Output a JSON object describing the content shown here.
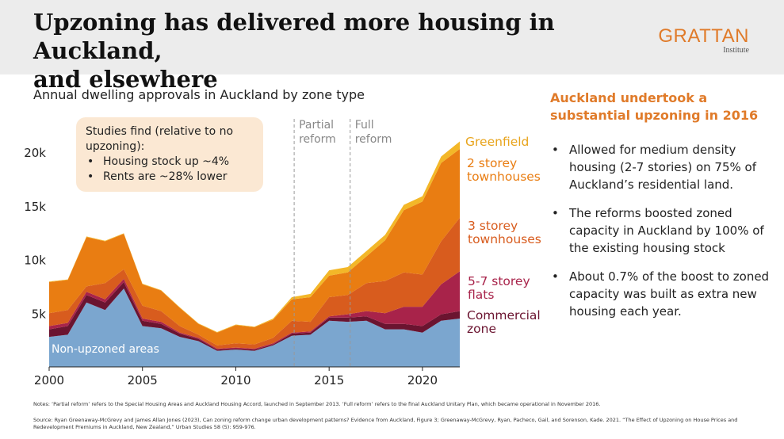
{
  "header": {
    "title_line1": "Upzoning has delivered more housing in Auckland,",
    "title_line2": "and elsewhere",
    "logo_main": "GRATTAN",
    "logo_sub": "Institute"
  },
  "callout": {
    "intro": "Studies find (relative to no upzoning):",
    "items": [
      "Housing stock up ~4%",
      "Rents are ~28% lower"
    ]
  },
  "side_panel": {
    "heading": "Auckland undertook a substantial upzoning in 2016",
    "bullets": [
      "Allowed for medium density housing (2-7 stories) on 75% of Auckland’s residential land.",
      "The reforms boosted zoned capacity in Auckland by 100% of the existing housing stock",
      "About 0.7% of the boost to zoned capacity was built as extra new housing each year."
    ]
  },
  "footer": {
    "notes": "Notes: ‘Partial reform’ refers to the Special Housing Areas and Auckland Housing Accord, launched in September 2013. ‘Full reform’ refers to the final Auckland Unitary Plan, which became operational in November 2016.",
    "source": "Source: Ryan Greenaway-McGrevy and James Allan Jones (2023), Can zoning reform change urban development patterns? Evidence from Auckland, Figure 3; Greenaway-McGrevy, Ryan, Pacheco, Gail, and Sorenson, Kade. 2021. “The Effect of Upzoning on House Prices and Redevelopment Premiums in Auckland, New Zealand,” Urban Studies 58 (5): 959-976."
  },
  "colors": {
    "non_upzoned": "#7ba6cf",
    "commercial": "#6b1430",
    "flats": "#a8234a",
    "three_storey": "#d85c1e",
    "two_storey": "#e97d12",
    "greenfield": "#f3b728",
    "accent": "#e07b2a",
    "reform_line": "#999999"
  },
  "chart_data": {
    "type": "area",
    "stacked": true,
    "title": "Annual dwelling approvals in Auckland by zone type",
    "x": [
      2000,
      2001,
      2002,
      2003,
      2004,
      2005,
      2006,
      2007,
      2008,
      2009,
      2010,
      2011,
      2012,
      2013,
      2014,
      2015,
      2016,
      2017,
      2018,
      2019,
      2020,
      2021,
      2022
    ],
    "series": [
      {
        "name": "Non-upzoned areas",
        "label": "Non-upzoned areas",
        "color_key": "non_upzoned",
        "values": [
          2800,
          3000,
          6000,
          5300,
          7300,
          3800,
          3600,
          2800,
          2400,
          1500,
          1600,
          1500,
          2000,
          2900,
          3000,
          4300,
          4200,
          4300,
          3500,
          3500,
          3200,
          4300,
          4500
        ]
      },
      {
        "name": "Commercial zone",
        "label_lines": [
          "Commercial",
          "zone"
        ],
        "color_key": "commercial",
        "values": [
          700,
          800,
          700,
          700,
          600,
          500,
          400,
          300,
          200,
          100,
          100,
          100,
          100,
          200,
          200,
          300,
          400,
          400,
          500,
          500,
          600,
          600,
          700
        ]
      },
      {
        "name": "5-7 storey flats",
        "label_lines": [
          "5-7 storey",
          "flats"
        ],
        "color_key": "flats",
        "values": [
          300,
          300,
          300,
          300,
          300,
          200,
          200,
          100,
          100,
          100,
          100,
          100,
          100,
          100,
          100,
          100,
          300,
          500,
          1000,
          1600,
          1800,
          2800,
          3700
        ]
      },
      {
        "name": "3 storey townhouses",
        "label_lines": [
          "3 storey",
          "townhouses"
        ],
        "color_key": "three_storey",
        "values": [
          1200,
          1200,
          500,
          1500,
          900,
          1200,
          1000,
          600,
          300,
          300,
          400,
          400,
          500,
          1100,
          900,
          1800,
          1800,
          2600,
          3000,
          3200,
          3000,
          4000,
          5000
        ]
      },
      {
        "name": "2 storey townhouses",
        "label_lines": [
          "2 storey",
          "townhouses"
        ],
        "color_key": "two_storey",
        "values": [
          2900,
          2800,
          4600,
          3900,
          3300,
          2000,
          1900,
          1700,
          1000,
          1200,
          1700,
          1600,
          1700,
          2000,
          2300,
          2000,
          2100,
          2500,
          3800,
          5800,
          6800,
          7300,
          6400
        ]
      },
      {
        "name": "Greenfield",
        "label_lines": [
          "Greenfield"
        ],
        "color_key": "greenfield",
        "values": [
          50,
          50,
          50,
          50,
          50,
          50,
          50,
          50,
          50,
          50,
          50,
          50,
          100,
          200,
          300,
          500,
          500,
          500,
          500,
          500,
          500,
          600,
          700
        ]
      }
    ],
    "xlim": [
      2000,
      2022
    ],
    "ylim": [
      0,
      21000
    ],
    "x_ticks": [
      2000,
      2005,
      2010,
      2015,
      2020
    ],
    "y_ticks": [
      5000,
      10000,
      15000,
      20000
    ],
    "y_tick_labels": [
      "5k",
      "10k",
      "15k",
      "20k"
    ],
    "reference_lines": [
      {
        "x": 2013,
        "label_lines": [
          "Partial",
          "reform"
        ]
      },
      {
        "x": 2016,
        "label_lines": [
          "Full",
          "reform"
        ]
      }
    ]
  }
}
